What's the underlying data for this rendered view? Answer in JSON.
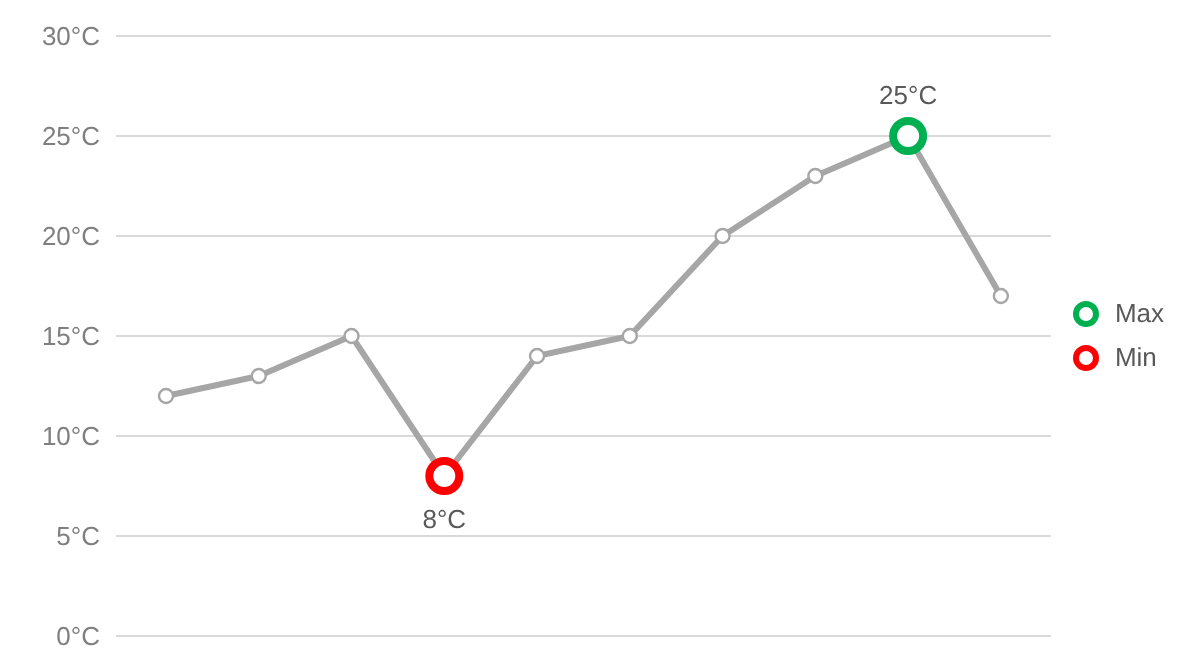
{
  "chart_data": {
    "type": "line",
    "categories": [
      null,
      null,
      null,
      null,
      null,
      null,
      null,
      null,
      null,
      null
    ],
    "series": [
      {
        "color": "#a6a6a6",
        "values": [
          12,
          13,
          15,
          8,
          14,
          15,
          20,
          23,
          25,
          17
        ]
      },
      {
        "type": "scatter",
        "name": "Max",
        "color": "#00b050",
        "values": [
          null,
          null,
          null,
          null,
          null,
          null,
          null,
          null,
          25,
          null
        ],
        "value_labels": [
          null,
          null,
          null,
          null,
          null,
          null,
          null,
          null,
          "25°C",
          null
        ]
      },
      {
        "type": "scatter",
        "name": "Min",
        "color": "#ff0000",
        "values": [
          null,
          null,
          null,
          8,
          null,
          null,
          null,
          null,
          null,
          null
        ],
        "value_labels": [
          null,
          null,
          null,
          "8°C",
          null,
          null,
          null,
          null,
          null,
          null
        ]
      }
    ],
    "ylim": [
      0,
      30
    ],
    "yticks": [
      {
        "value": 0,
        "label": "0°C"
      },
      {
        "value": 5,
        "label": "5°C"
      },
      {
        "value": 10,
        "label": "10°C"
      },
      {
        "value": 15,
        "label": "15°C"
      },
      {
        "value": 20,
        "label": "20°C"
      },
      {
        "value": 25,
        "label": "25°C"
      },
      {
        "value": 30,
        "label": "30°C"
      }
    ],
    "grid": "y",
    "legend": "right",
    "marker": "circle",
    "line_style": "solid"
  }
}
